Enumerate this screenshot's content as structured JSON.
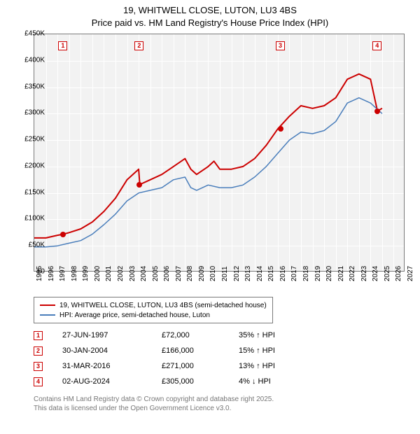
{
  "title_line1": "19, WHITWELL CLOSE, LUTON, LU3 4BS",
  "title_line2": "Price paid vs. HM Land Registry's House Price Index (HPI)",
  "chart": {
    "type": "line",
    "background_color": "#f2f2f2",
    "grid_color": "#ffffff",
    "border_color": "#7a7a7a",
    "x_years": [
      1995,
      1996,
      1997,
      1998,
      1999,
      2000,
      2001,
      2002,
      2003,
      2004,
      2005,
      2006,
      2007,
      2008,
      2009,
      2010,
      2011,
      2012,
      2013,
      2014,
      2015,
      2016,
      2017,
      2018,
      2019,
      2020,
      2021,
      2022,
      2023,
      2024,
      2025,
      2026,
      2027
    ],
    "xlim": [
      1995,
      2027
    ],
    "ylim": [
      0,
      450000
    ],
    "ytick_step": 50000,
    "ytick_labels": [
      "£0",
      "£50K",
      "£100K",
      "£150K",
      "£200K",
      "£250K",
      "£300K",
      "£350K",
      "£400K",
      "£450K"
    ],
    "series": [
      {
        "name": "19, WHITWELL CLOSE, LUTON, LU3 4BS (semi-detached house)",
        "color": "#cc0000",
        "line_width": 2,
        "points": [
          [
            1995,
            65000
          ],
          [
            1996,
            65000
          ],
          [
            1997,
            70000
          ],
          [
            1997.5,
            72000
          ],
          [
            1998,
            75000
          ],
          [
            1999,
            82000
          ],
          [
            2000,
            95000
          ],
          [
            2001,
            115000
          ],
          [
            2002,
            140000
          ],
          [
            2003,
            175000
          ],
          [
            2004,
            195000
          ],
          [
            2004.1,
            166000
          ],
          [
            2005,
            175000
          ],
          [
            2006,
            185000
          ],
          [
            2007,
            200000
          ],
          [
            2008,
            215000
          ],
          [
            2008.5,
            195000
          ],
          [
            2009,
            185000
          ],
          [
            2010,
            200000
          ],
          [
            2010.5,
            210000
          ],
          [
            2011,
            195000
          ],
          [
            2012,
            195000
          ],
          [
            2013,
            200000
          ],
          [
            2014,
            215000
          ],
          [
            2015,
            240000
          ],
          [
            2016,
            271000
          ],
          [
            2017,
            295000
          ],
          [
            2018,
            315000
          ],
          [
            2019,
            310000
          ],
          [
            2020,
            315000
          ],
          [
            2021,
            330000
          ],
          [
            2022,
            365000
          ],
          [
            2023,
            375000
          ],
          [
            2024,
            365000
          ],
          [
            2024.6,
            305000
          ],
          [
            2025,
            310000
          ]
        ]
      },
      {
        "name": "HPI: Average price, semi-detached house, Luton",
        "color": "#4a7ebb",
        "line_width": 1.5,
        "points": [
          [
            1995,
            48000
          ],
          [
            1996,
            48000
          ],
          [
            1997,
            50000
          ],
          [
            1998,
            55000
          ],
          [
            1999,
            60000
          ],
          [
            2000,
            72000
          ],
          [
            2001,
            90000
          ],
          [
            2002,
            110000
          ],
          [
            2003,
            135000
          ],
          [
            2004,
            150000
          ],
          [
            2005,
            155000
          ],
          [
            2006,
            160000
          ],
          [
            2007,
            175000
          ],
          [
            2008,
            180000
          ],
          [
            2008.5,
            160000
          ],
          [
            2009,
            155000
          ],
          [
            2010,
            165000
          ],
          [
            2011,
            160000
          ],
          [
            2012,
            160000
          ],
          [
            2013,
            165000
          ],
          [
            2014,
            180000
          ],
          [
            2015,
            200000
          ],
          [
            2016,
            225000
          ],
          [
            2017,
            250000
          ],
          [
            2018,
            265000
          ],
          [
            2019,
            262000
          ],
          [
            2020,
            268000
          ],
          [
            2021,
            285000
          ],
          [
            2022,
            320000
          ],
          [
            2023,
            330000
          ],
          [
            2024,
            320000
          ],
          [
            2025,
            300000
          ]
        ]
      }
    ],
    "transaction_markers": [
      {
        "n": "1",
        "year": 1997.5,
        "price": 72000,
        "color": "#cc0000"
      },
      {
        "n": "2",
        "year": 2004.08,
        "price": 166000,
        "color": "#cc0000"
      },
      {
        "n": "3",
        "year": 2016.25,
        "price": 271000,
        "color": "#cc0000"
      },
      {
        "n": "4",
        "year": 2024.6,
        "price": 305000,
        "color": "#cc0000"
      }
    ]
  },
  "legend": [
    {
      "color": "#cc0000",
      "width": 2,
      "label": "19, WHITWELL CLOSE, LUTON, LU3 4BS (semi-detached house)"
    },
    {
      "color": "#4a7ebb",
      "width": 1.5,
      "label": "HPI: Average price, semi-detached house, Luton"
    }
  ],
  "transactions": [
    {
      "n": "1",
      "date": "27-JUN-1997",
      "price": "£72,000",
      "hpi": "35% ↑ HPI",
      "color": "#cc0000"
    },
    {
      "n": "2",
      "date": "30-JAN-2004",
      "price": "£166,000",
      "hpi": "15% ↑ HPI",
      "color": "#cc0000"
    },
    {
      "n": "3",
      "date": "31-MAR-2016",
      "price": "£271,000",
      "hpi": "13% ↑ HPI",
      "color": "#cc0000"
    },
    {
      "n": "4",
      "date": "02-AUG-2024",
      "price": "£305,000",
      "hpi": "4% ↓ HPI",
      "color": "#cc0000"
    }
  ],
  "footer_line1": "Contains HM Land Registry data © Crown copyright and database right 2025.",
  "footer_line2": "This data is licensed under the Open Government Licence v3.0."
}
